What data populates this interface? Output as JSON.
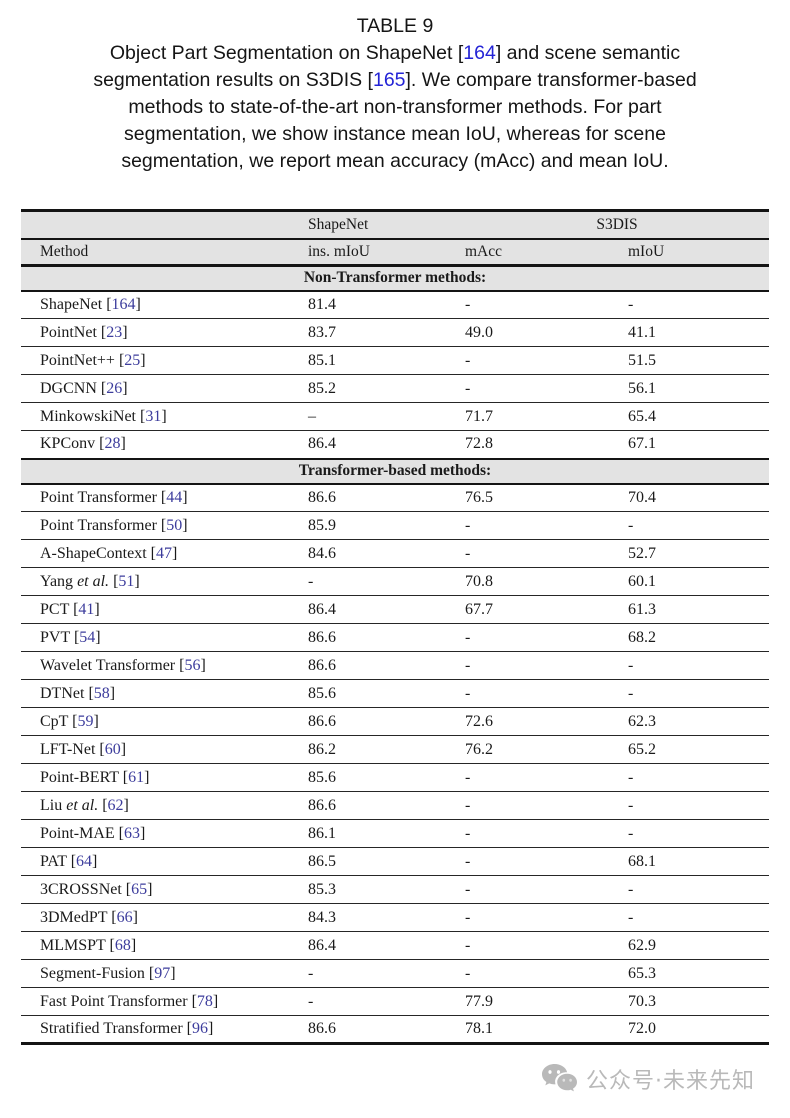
{
  "caption": {
    "label": "TABLE 9",
    "lines": [
      [
        {
          "t": "Object Part Segmentation on ShapeNet ["
        },
        {
          "t": "164",
          "cite": true
        },
        {
          "t": "] and scene semantic"
        }
      ],
      [
        {
          "t": "segmentation results on S3DIS ["
        },
        {
          "t": "165",
          "cite": true
        },
        {
          "t": "]. We compare transformer-based"
        }
      ],
      [
        {
          "t": "methods to state-of-the-art non-transformer methods. For part"
        }
      ],
      [
        {
          "t": "segmentation, we show instance mean IoU, whereas for scene"
        }
      ],
      [
        {
          "t": "segmentation, we report mean accuracy (mAcc) and mean IoU."
        }
      ]
    ]
  },
  "table": {
    "group_headers": [
      {
        "label": "ShapeNet"
      },
      {
        "label": "S3DIS"
      }
    ],
    "columns": [
      "Method",
      "ins. mIoU",
      "mAcc",
      "mIoU"
    ],
    "cite_open": " [",
    "cite_close": "]",
    "sections": [
      {
        "title": "Non-Transformer methods:",
        "rows": [
          {
            "method": "ShapeNet",
            "cite": "164",
            "values": [
              "81.4",
              "-",
              "-"
            ]
          },
          {
            "method": "PointNet",
            "cite": "23",
            "values": [
              "83.7",
              "49.0",
              "41.1"
            ]
          },
          {
            "method": "PointNet++",
            "cite": "25",
            "values": [
              "85.1",
              "-",
              "51.5"
            ]
          },
          {
            "method": "DGCNN",
            "cite": "26",
            "values": [
              "85.2",
              "-",
              "56.1"
            ]
          },
          {
            "method": "MinkowskiNet",
            "cite": "31",
            "values": [
              "–",
              "71.7",
              "65.4"
            ]
          },
          {
            "method": "KPConv",
            "cite": "28",
            "values": [
              "86.4",
              "72.8",
              "67.1"
            ]
          }
        ]
      },
      {
        "title": "Transformer-based methods:",
        "rows": [
          {
            "method": "Point Transformer",
            "cite": "44",
            "values": [
              "86.6",
              "76.5",
              "70.4"
            ]
          },
          {
            "method": "Point Transformer",
            "cite": "50",
            "values": [
              "85.9",
              "-",
              "-"
            ]
          },
          {
            "method": "A-ShapeContext",
            "cite": "47",
            "values": [
              "84.6",
              "-",
              "52.7"
            ]
          },
          {
            "method": "Yang",
            "etal": true,
            "cite": "51",
            "values": [
              "-",
              "70.8",
              "60.1"
            ]
          },
          {
            "method": "PCT",
            "cite": "41",
            "values": [
              "86.4",
              "67.7",
              "61.3"
            ]
          },
          {
            "method": "PVT",
            "cite": "54",
            "values": [
              "86.6",
              "-",
              "68.2"
            ]
          },
          {
            "method": "Wavelet Transformer",
            "cite": "56",
            "values": [
              "86.6",
              "-",
              "-"
            ]
          },
          {
            "method": "DTNet",
            "cite": "58",
            "values": [
              "85.6",
              "-",
              "-"
            ]
          },
          {
            "method": "CpT",
            "cite": "59",
            "values": [
              "86.6",
              "72.6",
              "62.3"
            ]
          },
          {
            "method": "LFT-Net",
            "cite": "60",
            "values": [
              "86.2",
              "76.2",
              "65.2"
            ]
          },
          {
            "method": "Point-BERT",
            "cite": "61",
            "values": [
              "85.6",
              "-",
              "-"
            ]
          },
          {
            "method": "Liu",
            "etal": true,
            "cite": "62",
            "values": [
              "86.6",
              "-",
              "-"
            ]
          },
          {
            "method": "Point-MAE",
            "cite": "63",
            "values": [
              "86.1",
              "-",
              "-"
            ]
          },
          {
            "method": "PAT",
            "cite": "64",
            "values": [
              "86.5",
              "-",
              "68.1"
            ]
          },
          {
            "method": "3CROSSNet",
            "cite": "65",
            "values": [
              "85.3",
              "-",
              "-"
            ]
          },
          {
            "method": "3DMedPT",
            "cite": "66",
            "values": [
              "84.3",
              "-",
              "-"
            ]
          },
          {
            "method": "MLMSPT",
            "cite": "68",
            "values": [
              "86.4",
              "-",
              "62.9"
            ]
          },
          {
            "method": "Segment-Fusion",
            "cite": "97",
            "values": [
              "-",
              "-",
              "65.3"
            ]
          },
          {
            "method": "Fast Point Transformer",
            "cite": "78",
            "values": [
              "-",
              "77.9",
              "70.3"
            ]
          },
          {
            "method": "Stratified Transformer",
            "cite": "96",
            "values": [
              "86.6",
              "78.1",
              "72.0"
            ]
          }
        ]
      }
    ]
  },
  "watermark": {
    "icon": "wechat-icon",
    "text": "公众号·未来先知"
  },
  "colors": {
    "caption_citation": "#2323d6",
    "table_citation": "#3c3c9c",
    "header_bg": "#e3e3e3",
    "rule_black": "#141414",
    "watermark_gray": "#b2b2b2"
  },
  "etal_label": " et al."
}
